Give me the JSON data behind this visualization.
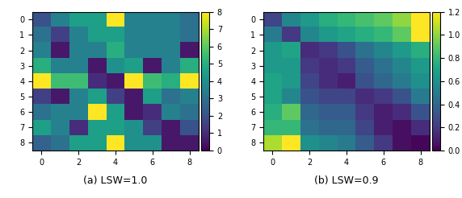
{
  "matrix_a": [
    [
      2.0,
      3.5,
      4.5,
      4.5,
      8.5,
      3.5,
      3.5,
      3.5,
      3.0
    ],
    [
      3.0,
      1.5,
      3.5,
      4.5,
      4.5,
      3.5,
      3.5,
      3.5,
      3.0
    ],
    [
      3.5,
      0.5,
      3.5,
      3.5,
      5.0,
      3.5,
      3.5,
      3.5,
      0.5
    ],
    [
      5.0,
      3.5,
      3.5,
      0.5,
      4.0,
      4.5,
      0.5,
      3.5,
      5.0
    ],
    [
      8.5,
      5.5,
      5.5,
      1.0,
      0.5,
      8.5,
      5.5,
      5.0,
      8.5
    ],
    [
      1.5,
      0.5,
      3.5,
      4.5,
      1.5,
      0.5,
      4.5,
      3.0,
      3.5
    ],
    [
      3.0,
      3.5,
      3.5,
      8.5,
      4.5,
      0.5,
      1.0,
      3.5,
      3.0
    ],
    [
      4.5,
      3.5,
      1.0,
      4.5,
      4.5,
      4.0,
      1.5,
      0.5,
      2.0
    ],
    [
      2.5,
      3.0,
      4.5,
      4.5,
      8.5,
      4.0,
      4.0,
      0.5,
      0.5
    ]
  ],
  "matrix_b": [
    [
      0.25,
      0.55,
      0.65,
      0.75,
      0.8,
      0.85,
      0.9,
      1.0,
      1.25
    ],
    [
      0.5,
      0.2,
      0.55,
      0.65,
      0.7,
      0.75,
      0.8,
      0.9,
      1.25
    ],
    [
      0.65,
      0.7,
      0.15,
      0.2,
      0.3,
      0.45,
      0.55,
      0.65,
      0.75
    ],
    [
      0.65,
      0.65,
      0.2,
      0.15,
      0.2,
      0.35,
      0.45,
      0.55,
      0.65
    ],
    [
      0.7,
      0.65,
      0.25,
      0.15,
      0.1,
      0.3,
      0.4,
      0.5,
      0.6
    ],
    [
      0.7,
      0.55,
      0.3,
      0.25,
      0.25,
      0.15,
      0.2,
      0.3,
      0.5
    ],
    [
      0.75,
      0.9,
      0.4,
      0.35,
      0.35,
      0.2,
      0.1,
      0.15,
      0.3
    ],
    [
      0.8,
      0.8,
      0.45,
      0.4,
      0.4,
      0.25,
      0.1,
      0.05,
      0.15
    ],
    [
      1.05,
      1.25,
      0.6,
      0.55,
      0.5,
      0.35,
      0.2,
      0.05,
      0.02
    ]
  ],
  "title_a": "(a) LSW=1.0",
  "title_b": "(b) LSW=0.9",
  "cmap": "viridis",
  "vmin_a": 0,
  "vmax_a": 8,
  "vmin_b": 0.0,
  "vmax_b": 1.2
}
